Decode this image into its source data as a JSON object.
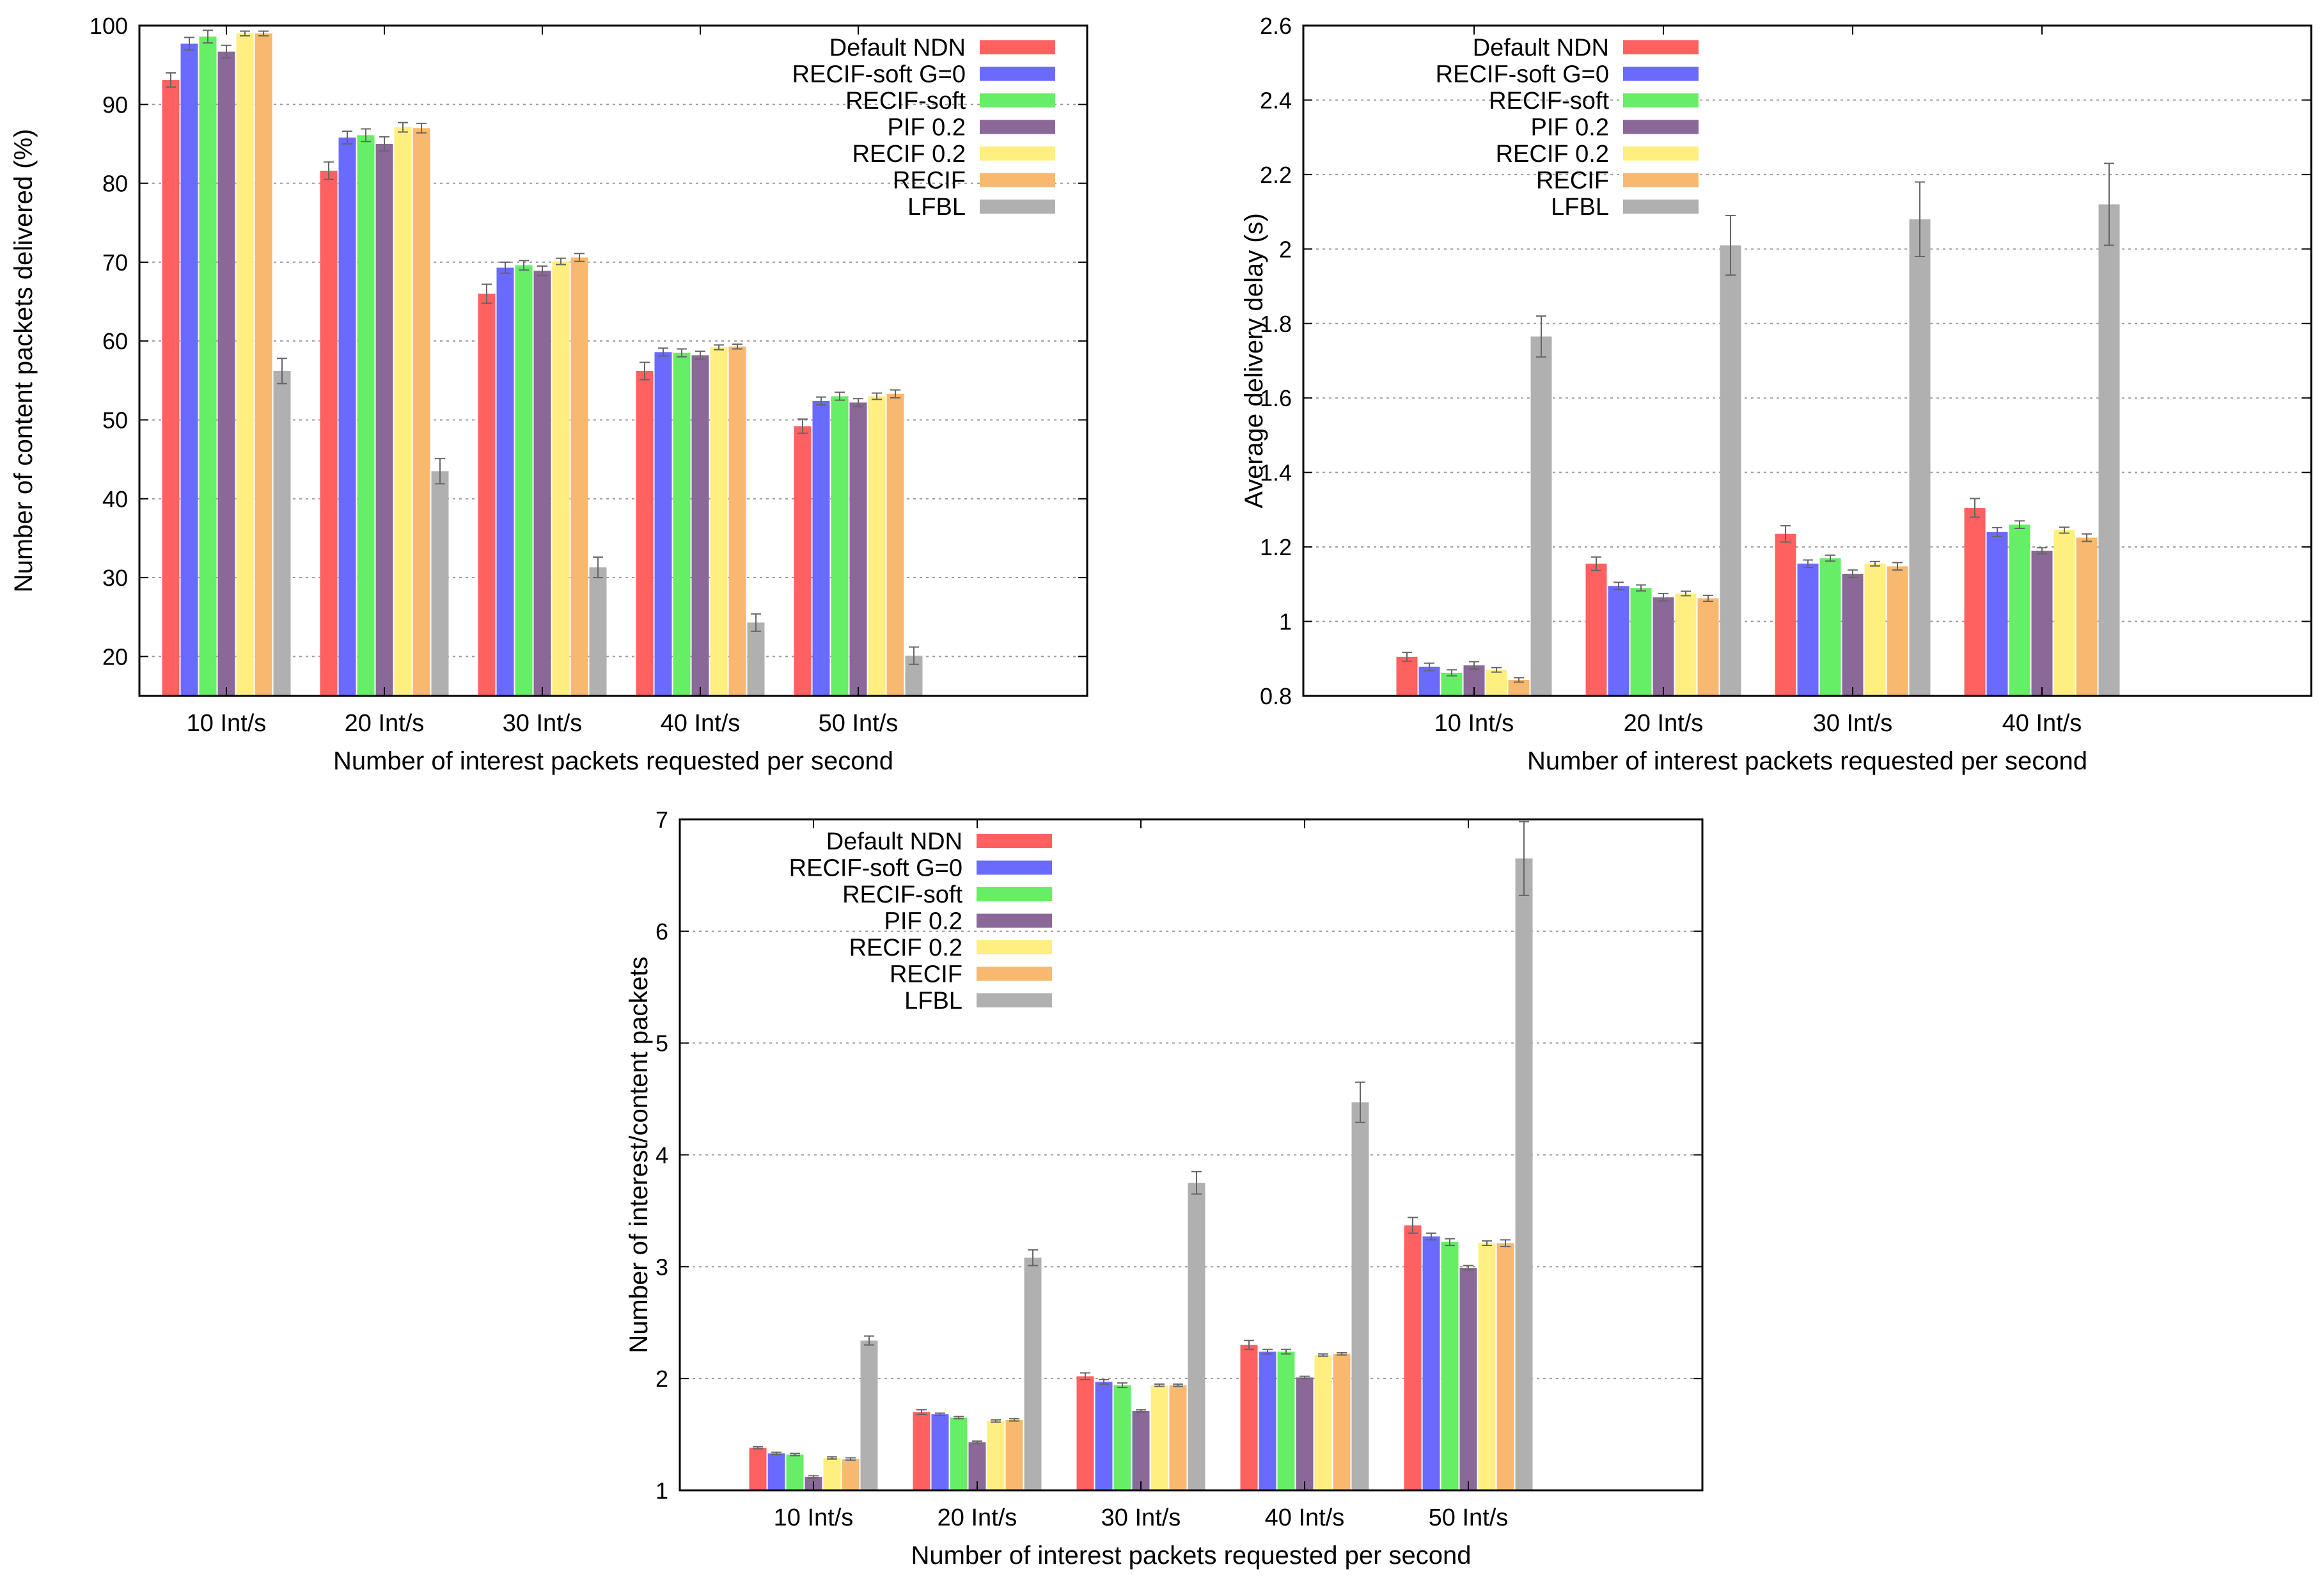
{
  "chart_data": [
    {
      "type": "bar",
      "title": "",
      "xlabel": "Number of interest packets requested per second",
      "ylabel": "Number of content packets delivered (%)",
      "ylim": [
        15,
        100
      ],
      "yticks": [
        20,
        30,
        40,
        50,
        60,
        70,
        80,
        90,
        100
      ],
      "ytick_labels": [
        "20",
        "30",
        "40",
        "50",
        "60",
        "70",
        "80",
        "90",
        "100"
      ],
      "categories": [
        "10 Int/s",
        "20 Int/s",
        "30 Int/s",
        "40 Int/s",
        "50 Int/s"
      ],
      "grid": true,
      "legend_position": "top-right",
      "series": [
        {
          "name": "Default NDN",
          "color": "#ff6060",
          "values": [
            93.1,
            81.6,
            66.0,
            56.2,
            49.2
          ],
          "errors": [
            0.9,
            1.1,
            1.2,
            1.1,
            0.9
          ]
        },
        {
          "name": "RECIF-soft G=0",
          "color": "#6a6aff",
          "values": [
            97.7,
            85.8,
            69.3,
            58.6,
            52.4
          ],
          "errors": [
            0.8,
            0.8,
            0.7,
            0.5,
            0.5
          ]
        },
        {
          "name": "RECIF-soft",
          "color": "#66ee66",
          "values": [
            98.6,
            86.1,
            69.6,
            58.5,
            53.0
          ],
          "errors": [
            0.8,
            0.8,
            0.6,
            0.5,
            0.5
          ]
        },
        {
          "name": "PIF 0.2",
          "color": "#8a6898",
          "values": [
            96.7,
            85.0,
            68.9,
            58.2,
            52.2
          ],
          "errors": [
            0.8,
            0.9,
            0.6,
            0.5,
            0.5
          ]
        },
        {
          "name": "RECIF 0.2",
          "color": "#ffee80",
          "values": [
            99.0,
            87.1,
            70.1,
            59.2,
            53.0
          ],
          "errors": [
            0.3,
            0.6,
            0.4,
            0.3,
            0.4
          ]
        },
        {
          "name": "RECIF",
          "color": "#f8b870",
          "values": [
            99.0,
            87.0,
            70.6,
            59.3,
            53.3
          ],
          "errors": [
            0.3,
            0.6,
            0.5,
            0.3,
            0.5
          ]
        },
        {
          "name": "LFBL",
          "color": "#b0b0b0",
          "values": [
            56.2,
            43.5,
            31.3,
            24.3,
            20.1
          ],
          "errors": [
            1.6,
            1.6,
            1.3,
            1.1,
            1.1
          ]
        }
      ]
    },
    {
      "type": "bar",
      "title": "",
      "xlabel": "Number of interest packets requested per second",
      "ylabel": "Average delivery delay (s)",
      "ylim": [
        0.8,
        2.6
      ],
      "yticks": [
        0.8,
        1.0,
        1.2,
        1.4,
        1.6,
        1.8,
        2.0,
        2.2,
        2.4,
        2.6
      ],
      "ytick_labels": [
        "0.8",
        "1",
        "1.2",
        "1.4",
        "1.6",
        "1.8",
        "2",
        "2.2",
        "2.4",
        "2.6"
      ],
      "categories": [
        "10 Int/s",
        "20 Int/s",
        "30 Int/s",
        "40 Int/s"
      ],
      "grid": true,
      "legend_position": "top-left",
      "series": [
        {
          "name": "Default NDN",
          "color": "#ff6060",
          "values": [
            0.905,
            1.155,
            1.235,
            1.305
          ],
          "errors": [
            0.012,
            0.018,
            0.022,
            0.025
          ]
        },
        {
          "name": "RECIF-soft G=0",
          "color": "#6a6aff",
          "values": [
            0.878,
            1.095,
            1.155,
            1.24
          ],
          "errors": [
            0.01,
            0.01,
            0.01,
            0.012
          ]
        },
        {
          "name": "RECIF-soft",
          "color": "#66ee66",
          "values": [
            0.862,
            1.09,
            1.17,
            1.26
          ],
          "errors": [
            0.008,
            0.008,
            0.008,
            0.01
          ]
        },
        {
          "name": "PIF 0.2",
          "color": "#8a6898",
          "values": [
            0.882,
            1.065,
            1.128,
            1.19
          ],
          "errors": [
            0.01,
            0.01,
            0.01,
            0.008
          ]
        },
        {
          "name": "RECIF 0.2",
          "color": "#ffee80",
          "values": [
            0.87,
            1.075,
            1.155,
            1.245
          ],
          "errors": [
            0.006,
            0.006,
            0.006,
            0.008
          ]
        },
        {
          "name": "RECIF",
          "color": "#f8b870",
          "values": [
            0.843,
            1.062,
            1.148,
            1.225
          ],
          "errors": [
            0.006,
            0.008,
            0.01,
            0.01
          ]
        },
        {
          "name": "LFBL",
          "color": "#b0b0b0",
          "values": [
            1.765,
            2.01,
            2.08,
            2.12
          ],
          "errors": [
            0.055,
            0.08,
            0.1,
            0.11
          ]
        }
      ]
    },
    {
      "type": "bar",
      "title": "",
      "xlabel": "Number of interest packets requested per second",
      "ylabel": "Number of  interest/content packets",
      "ylim": [
        1,
        7
      ],
      "yticks": [
        1,
        2,
        3,
        4,
        5,
        6,
        7
      ],
      "ytick_labels": [
        "1",
        "2",
        "3",
        "4",
        "5",
        "6",
        "7"
      ],
      "categories": [
        "10 Int/s",
        "20 Int/s",
        "30 Int/s",
        "40 Int/s",
        "50 Int/s"
      ],
      "grid": true,
      "legend_position": "top-left",
      "series": [
        {
          "name": "Default NDN",
          "color": "#ff6060",
          "values": [
            1.38,
            1.7,
            2.02,
            2.3,
            3.37
          ],
          "errors": [
            0.01,
            0.02,
            0.03,
            0.04,
            0.07
          ]
        },
        {
          "name": "RECIF-soft G=0",
          "color": "#6a6aff",
          "values": [
            1.33,
            1.68,
            1.97,
            2.24,
            3.27
          ],
          "errors": [
            0.01,
            0.01,
            0.02,
            0.02,
            0.03
          ]
        },
        {
          "name": "RECIF-soft",
          "color": "#66ee66",
          "values": [
            1.32,
            1.65,
            1.94,
            2.24,
            3.22
          ],
          "errors": [
            0.01,
            0.01,
            0.02,
            0.02,
            0.03
          ]
        },
        {
          "name": "PIF 0.2",
          "color": "#8a6898",
          "values": [
            1.12,
            1.43,
            1.71,
            2.01,
            2.99
          ],
          "errors": [
            0.01,
            0.01,
            0.01,
            0.01,
            0.02
          ]
        },
        {
          "name": "RECIF 0.2",
          "color": "#ffee80",
          "values": [
            1.29,
            1.62,
            1.94,
            2.21,
            3.21
          ],
          "errors": [
            0.01,
            0.01,
            0.01,
            0.01,
            0.02
          ]
        },
        {
          "name": "RECIF",
          "color": "#f8b870",
          "values": [
            1.28,
            1.63,
            1.94,
            2.22,
            3.21
          ],
          "errors": [
            0.01,
            0.01,
            0.01,
            0.01,
            0.03
          ]
        },
        {
          "name": "LFBL",
          "color": "#b0b0b0",
          "values": [
            2.34,
            3.08,
            3.75,
            4.47,
            6.65
          ],
          "errors": [
            0.04,
            0.07,
            0.1,
            0.18,
            0.33
          ]
        }
      ]
    }
  ]
}
